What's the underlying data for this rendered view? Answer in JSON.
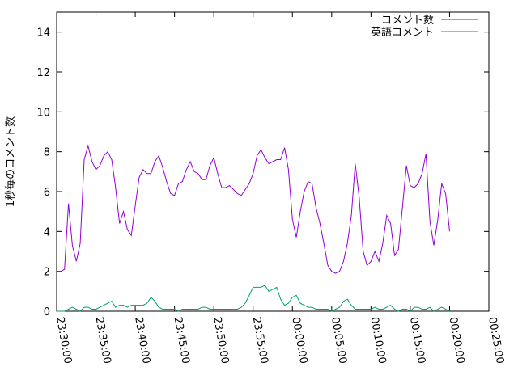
{
  "chart_data": {
    "type": "line",
    "title": "",
    "xlabel": "",
    "ylabel": "1秒毎のコメント数",
    "xlim": [
      "23:30:00",
      "00:25:00"
    ],
    "ylim": [
      0,
      15
    ],
    "x_ticks": [
      "23:30:00",
      "23:35:00",
      "23:40:00",
      "23:45:00",
      "23:50:00",
      "23:55:00",
      "00:00:00",
      "00:05:00",
      "00:10:00",
      "00:15:00",
      "00:20:00",
      "00:25:00"
    ],
    "y_ticks": [
      "0",
      "2",
      "4",
      "6",
      "8",
      "10",
      "12",
      "14"
    ],
    "grid": false,
    "legend_position": "top-right",
    "series": [
      {
        "name": "コメント数",
        "color": "#9400d3",
        "points": [
          [
            "23:30:00",
            2.0
          ],
          [
            "23:30:30",
            2.0
          ],
          [
            "23:31:00",
            2.1
          ],
          [
            "23:31:30",
            5.4
          ],
          [
            "23:32:00",
            3.3
          ],
          [
            "23:32:30",
            2.5
          ],
          [
            "23:33:00",
            3.4
          ],
          [
            "23:33:30",
            7.6
          ],
          [
            "23:34:00",
            8.3
          ],
          [
            "23:34:30",
            7.5
          ],
          [
            "23:35:00",
            7.1
          ],
          [
            "23:35:30",
            7.3
          ],
          [
            "23:36:00",
            7.8
          ],
          [
            "23:36:30",
            8.0
          ],
          [
            "23:37:00",
            7.6
          ],
          [
            "23:37:30",
            6.2
          ],
          [
            "23:38:00",
            4.4
          ],
          [
            "23:38:30",
            5.0
          ],
          [
            "23:39:00",
            4.1
          ],
          [
            "23:39:30",
            3.8
          ],
          [
            "23:40:00",
            5.3
          ],
          [
            "23:40:30",
            6.7
          ],
          [
            "23:41:00",
            7.1
          ],
          [
            "23:41:30",
            6.9
          ],
          [
            "23:42:00",
            6.9
          ],
          [
            "23:42:30",
            7.5
          ],
          [
            "23:43:00",
            7.8
          ],
          [
            "23:43:30",
            7.2
          ],
          [
            "23:44:00",
            6.5
          ],
          [
            "23:44:30",
            5.9
          ],
          [
            "23:45:00",
            5.8
          ],
          [
            "23:45:30",
            6.4
          ],
          [
            "23:46:00",
            6.5
          ],
          [
            "23:46:30",
            7.1
          ],
          [
            "23:47:00",
            7.5
          ],
          [
            "23:47:30",
            7.0
          ],
          [
            "23:48:00",
            6.9
          ],
          [
            "23:48:30",
            6.6
          ],
          [
            "23:49:00",
            6.6
          ],
          [
            "23:49:30",
            7.3
          ],
          [
            "23:50:00",
            7.7
          ],
          [
            "23:50:30",
            6.9
          ],
          [
            "23:51:00",
            6.2
          ],
          [
            "23:51:30",
            6.2
          ],
          [
            "23:52:00",
            6.3
          ],
          [
            "23:52:30",
            6.1
          ],
          [
            "23:53:00",
            5.9
          ],
          [
            "23:53:30",
            5.8
          ],
          [
            "23:54:00",
            6.1
          ],
          [
            "23:54:30",
            6.4
          ],
          [
            "23:55:00",
            6.9
          ],
          [
            "23:55:30",
            7.8
          ],
          [
            "23:56:00",
            8.1
          ],
          [
            "23:56:30",
            7.7
          ],
          [
            "23:57:00",
            7.4
          ],
          [
            "23:57:30",
            7.5
          ],
          [
            "23:58:00",
            7.6
          ],
          [
            "23:58:30",
            7.6
          ],
          [
            "23:59:00",
            8.2
          ],
          [
            "23:59:30",
            7.1
          ],
          [
            "00:00:00",
            4.6
          ],
          [
            "00:00:30",
            3.7
          ],
          [
            "00:01:00",
            5.0
          ],
          [
            "00:01:30",
            6.0
          ],
          [
            "00:02:00",
            6.5
          ],
          [
            "00:02:30",
            6.4
          ],
          [
            "00:03:00",
            5.2
          ],
          [
            "00:03:30",
            4.4
          ],
          [
            "00:04:00",
            3.4
          ],
          [
            "00:04:30",
            2.3
          ],
          [
            "00:05:00",
            2.0
          ],
          [
            "00:05:30",
            1.9
          ],
          [
            "00:06:00",
            2.0
          ],
          [
            "00:06:30",
            2.5
          ],
          [
            "00:07:00",
            3.4
          ],
          [
            "00:07:30",
            4.8
          ],
          [
            "00:08:00",
            7.4
          ],
          [
            "00:08:30",
            5.7
          ],
          [
            "00:09:00",
            3.0
          ],
          [
            "00:09:30",
            2.3
          ],
          [
            "00:10:00",
            2.5
          ],
          [
            "00:10:30",
            3.0
          ],
          [
            "00:11:00",
            2.5
          ],
          [
            "00:11:30",
            3.4
          ],
          [
            "00:12:00",
            4.8
          ],
          [
            "00:12:30",
            4.4
          ],
          [
            "00:13:00",
            2.8
          ],
          [
            "00:13:30",
            3.1
          ],
          [
            "00:14:00",
            5.2
          ],
          [
            "00:14:30",
            7.3
          ],
          [
            "00:15:00",
            6.3
          ],
          [
            "00:15:30",
            6.2
          ],
          [
            "00:16:00",
            6.4
          ],
          [
            "00:16:30",
            6.9
          ],
          [
            "00:17:00",
            7.9
          ],
          [
            "00:17:30",
            4.5
          ],
          [
            "00:18:00",
            3.3
          ],
          [
            "00:18:30",
            4.6
          ],
          [
            "00:19:00",
            6.4
          ],
          [
            "00:19:30",
            5.9
          ],
          [
            "00:20:00",
            4.0
          ]
        ]
      },
      {
        "name": "英語コメント",
        "color": "#009e73",
        "points": [
          [
            "23:30:00",
            0.0
          ],
          [
            "23:30:30",
            0.0
          ],
          [
            "23:31:00",
            0.0
          ],
          [
            "23:31:30",
            0.1
          ],
          [
            "23:32:00",
            0.2
          ],
          [
            "23:32:30",
            0.1
          ],
          [
            "23:33:00",
            0.0
          ],
          [
            "23:33:30",
            0.2
          ],
          [
            "23:34:00",
            0.2
          ],
          [
            "23:34:30",
            0.1
          ],
          [
            "23:35:00",
            0.1
          ],
          [
            "23:35:30",
            0.2
          ],
          [
            "23:36:00",
            0.3
          ],
          [
            "23:36:30",
            0.4
          ],
          [
            "23:37:00",
            0.5
          ],
          [
            "23:37:30",
            0.2
          ],
          [
            "23:38:00",
            0.3
          ],
          [
            "23:38:30",
            0.3
          ],
          [
            "23:39:00",
            0.2
          ],
          [
            "23:39:30",
            0.3
          ],
          [
            "23:40:00",
            0.3
          ],
          [
            "23:40:30",
            0.3
          ],
          [
            "23:41:00",
            0.3
          ],
          [
            "23:41:30",
            0.4
          ],
          [
            "23:42:00",
            0.7
          ],
          [
            "23:42:30",
            0.5
          ],
          [
            "23:43:00",
            0.2
          ],
          [
            "23:43:30",
            0.1
          ],
          [
            "23:44:00",
            0.1
          ],
          [
            "23:44:30",
            0.1
          ],
          [
            "23:45:00",
            0.1
          ],
          [
            "23:45:30",
            0.0
          ],
          [
            "23:46:00",
            0.1
          ],
          [
            "23:46:30",
            0.1
          ],
          [
            "23:47:00",
            0.1
          ],
          [
            "23:47:30",
            0.1
          ],
          [
            "23:48:00",
            0.1
          ],
          [
            "23:48:30",
            0.2
          ],
          [
            "23:49:00",
            0.2
          ],
          [
            "23:49:30",
            0.1
          ],
          [
            "23:50:00",
            0.1
          ],
          [
            "23:50:30",
            0.1
          ],
          [
            "23:51:00",
            0.1
          ],
          [
            "23:51:30",
            0.1
          ],
          [
            "23:52:00",
            0.1
          ],
          [
            "23:52:30",
            0.1
          ],
          [
            "23:53:00",
            0.1
          ],
          [
            "23:53:30",
            0.2
          ],
          [
            "23:54:00",
            0.4
          ],
          [
            "23:54:30",
            0.8
          ],
          [
            "23:55:00",
            1.2
          ],
          [
            "23:55:30",
            1.2
          ],
          [
            "23:56:00",
            1.2
          ],
          [
            "23:56:30",
            1.3
          ],
          [
            "23:57:00",
            1.0
          ],
          [
            "23:57:30",
            1.1
          ],
          [
            "23:58:00",
            1.2
          ],
          [
            "23:58:30",
            0.6
          ],
          [
            "23:59:00",
            0.3
          ],
          [
            "23:59:30",
            0.4
          ],
          [
            "00:00:00",
            0.7
          ],
          [
            "00:00:30",
            0.8
          ],
          [
            "00:01:00",
            0.4
          ],
          [
            "00:01:30",
            0.3
          ],
          [
            "00:02:00",
            0.2
          ],
          [
            "00:02:30",
            0.2
          ],
          [
            "00:03:00",
            0.1
          ],
          [
            "00:03:30",
            0.1
          ],
          [
            "00:04:00",
            0.1
          ],
          [
            "00:04:30",
            0.1
          ],
          [
            "00:05:00",
            0.0
          ],
          [
            "00:05:30",
            0.1
          ],
          [
            "00:06:00",
            0.2
          ],
          [
            "00:06:30",
            0.5
          ],
          [
            "00:07:00",
            0.6
          ],
          [
            "00:07:30",
            0.3
          ],
          [
            "00:08:00",
            0.1
          ],
          [
            "00:08:30",
            0.1
          ],
          [
            "00:09:00",
            0.1
          ],
          [
            "00:09:30",
            0.1
          ],
          [
            "00:10:00",
            0.1
          ],
          [
            "00:10:30",
            0.2
          ],
          [
            "00:11:00",
            0.1
          ],
          [
            "00:11:30",
            0.1
          ],
          [
            "00:12:00",
            0.2
          ],
          [
            "00:12:30",
            0.3
          ],
          [
            "00:13:00",
            0.1
          ],
          [
            "00:13:30",
            0.0
          ],
          [
            "00:14:00",
            0.1
          ],
          [
            "00:14:30",
            0.1
          ],
          [
            "00:15:00",
            0.0
          ],
          [
            "00:15:30",
            0.2
          ],
          [
            "00:16:00",
            0.2
          ],
          [
            "00:16:30",
            0.1
          ],
          [
            "00:17:00",
            0.1
          ],
          [
            "00:17:30",
            0.2
          ],
          [
            "00:18:00",
            0.0
          ],
          [
            "00:18:30",
            0.1
          ],
          [
            "00:19:00",
            0.2
          ],
          [
            "00:19:30",
            0.1
          ],
          [
            "00:20:00",
            0.0
          ]
        ]
      }
    ]
  }
}
